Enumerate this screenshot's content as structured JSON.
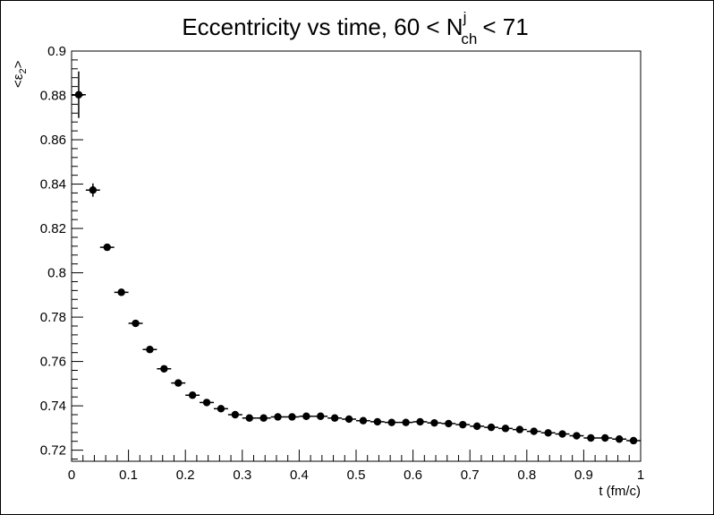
{
  "chart_data": {
    "type": "scatter",
    "title": {
      "main": "Eccentricity vs time, 60 < N",
      "sup": "j",
      "sub": "ch",
      "tail": "< 71"
    },
    "xlabel": "t (fm/c)",
    "ylabel": {
      "left": "<ε",
      "sub": "2",
      "right": ">"
    },
    "xlim": [
      0,
      1
    ],
    "ylim": [
      0.715,
      0.9
    ],
    "grid": false,
    "x_ticks": [
      {
        "value": 0,
        "label": "0"
      },
      {
        "value": 0.1,
        "label": "0.1"
      },
      {
        "value": 0.2,
        "label": "0.2"
      },
      {
        "value": 0.3,
        "label": "0.3"
      },
      {
        "value": 0.4,
        "label": "0.4"
      },
      {
        "value": 0.5,
        "label": "0.5"
      },
      {
        "value": 0.6,
        "label": "0.6"
      },
      {
        "value": 0.7,
        "label": "0.7"
      },
      {
        "value": 0.8,
        "label": "0.8"
      },
      {
        "value": 0.9,
        "label": "0.9"
      },
      {
        "value": 1,
        "label": "1"
      }
    ],
    "y_ticks": [
      {
        "value": 0.72,
        "label": "0.72"
      },
      {
        "value": 0.74,
        "label": "0.74"
      },
      {
        "value": 0.76,
        "label": "0.76"
      },
      {
        "value": 0.78,
        "label": "0.78"
      },
      {
        "value": 0.8,
        "label": "0.8"
      },
      {
        "value": 0.82,
        "label": "0.82"
      },
      {
        "value": 0.84,
        "label": "0.84"
      },
      {
        "value": 0.86,
        "label": "0.86"
      },
      {
        "value": 0.88,
        "label": "0.88"
      },
      {
        "value": 0.9,
        "label": "0.9"
      }
    ],
    "x_bin_halfwidth": 0.0125,
    "series": [
      {
        "marker_color": "#000000",
        "points": [
          {
            "x": 0.0125,
            "y": 0.8803,
            "yerr": 0.0105
          },
          {
            "x": 0.0375,
            "y": 0.8373,
            "yerr": 0.003
          },
          {
            "x": 0.0625,
            "y": 0.8115,
            "yerr": 0.0012
          },
          {
            "x": 0.0875,
            "y": 0.7912,
            "yerr": 0.0008
          },
          {
            "x": 0.1125,
            "y": 0.7772,
            "yerr": 0.0006
          },
          {
            "x": 0.1375,
            "y": 0.7654,
            "yerr": 0.0005
          },
          {
            "x": 0.1625,
            "y": 0.7567,
            "yerr": 0.0004
          },
          {
            "x": 0.1875,
            "y": 0.7503,
            "yerr": 0.0004
          },
          {
            "x": 0.2125,
            "y": 0.7448,
            "yerr": 0.0004
          },
          {
            "x": 0.2375,
            "y": 0.7415,
            "yerr": 0.0004
          },
          {
            "x": 0.2625,
            "y": 0.7387,
            "yerr": 0.0004
          },
          {
            "x": 0.2875,
            "y": 0.736,
            "yerr": 0.0004
          },
          {
            "x": 0.3125,
            "y": 0.7345,
            "yerr": 0.0004
          },
          {
            "x": 0.3375,
            "y": 0.7345,
            "yerr": 0.0004
          },
          {
            "x": 0.3625,
            "y": 0.735,
            "yerr": 0.0004
          },
          {
            "x": 0.3875,
            "y": 0.735,
            "yerr": 0.0004
          },
          {
            "x": 0.4125,
            "y": 0.7353,
            "yerr": 0.0004
          },
          {
            "x": 0.4375,
            "y": 0.7353,
            "yerr": 0.0004
          },
          {
            "x": 0.4625,
            "y": 0.7345,
            "yerr": 0.0004
          },
          {
            "x": 0.4875,
            "y": 0.734,
            "yerr": 0.0004
          },
          {
            "x": 0.5125,
            "y": 0.7333,
            "yerr": 0.0004
          },
          {
            "x": 0.5375,
            "y": 0.7328,
            "yerr": 0.0004
          },
          {
            "x": 0.5625,
            "y": 0.7325,
            "yerr": 0.0004
          },
          {
            "x": 0.5875,
            "y": 0.7325,
            "yerr": 0.0004
          },
          {
            "x": 0.6125,
            "y": 0.7328,
            "yerr": 0.0004
          },
          {
            "x": 0.6375,
            "y": 0.7323,
            "yerr": 0.0004
          },
          {
            "x": 0.6625,
            "y": 0.732,
            "yerr": 0.0004
          },
          {
            "x": 0.6875,
            "y": 0.7315,
            "yerr": 0.0004
          },
          {
            "x": 0.7125,
            "y": 0.7308,
            "yerr": 0.0004
          },
          {
            "x": 0.7375,
            "y": 0.7303,
            "yerr": 0.0004
          },
          {
            "x": 0.7625,
            "y": 0.7298,
            "yerr": 0.0004
          },
          {
            "x": 0.7875,
            "y": 0.7293,
            "yerr": 0.0004
          },
          {
            "x": 0.8125,
            "y": 0.7285,
            "yerr": 0.0004
          },
          {
            "x": 0.8375,
            "y": 0.7278,
            "yerr": 0.0004
          },
          {
            "x": 0.8625,
            "y": 0.7273,
            "yerr": 0.0004
          },
          {
            "x": 0.8875,
            "y": 0.7265,
            "yerr": 0.0004
          },
          {
            "x": 0.9125,
            "y": 0.7255,
            "yerr": 0.0004
          },
          {
            "x": 0.9375,
            "y": 0.7255,
            "yerr": 0.0004
          },
          {
            "x": 0.9625,
            "y": 0.725,
            "yerr": 0.0004
          },
          {
            "x": 0.9875,
            "y": 0.7243,
            "yerr": 0.0004
          }
        ]
      }
    ]
  }
}
